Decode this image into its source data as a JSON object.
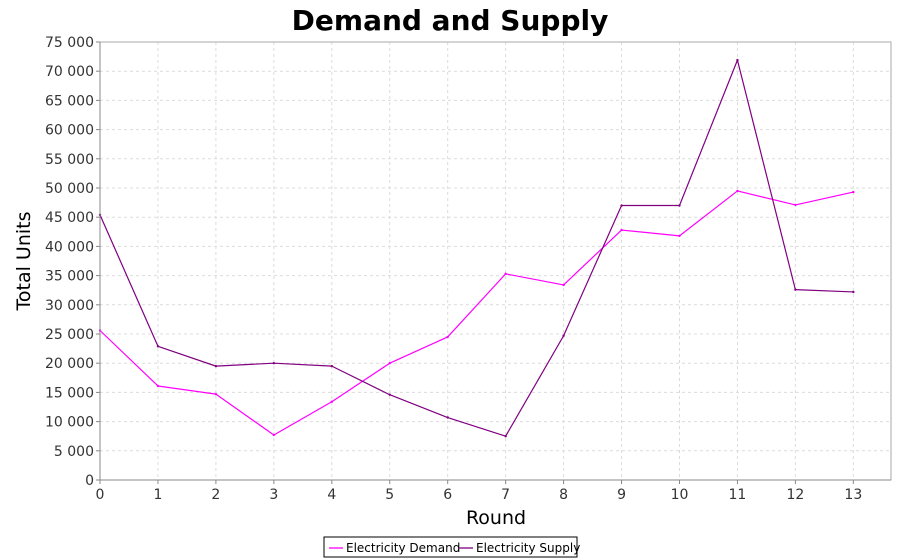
{
  "chart_data": {
    "type": "line",
    "title": "Demand and Supply",
    "xlabel": "Round",
    "ylabel": "Total Units",
    "x": [
      0,
      1,
      2,
      3,
      4,
      5,
      6,
      7,
      8,
      9,
      10,
      11,
      12,
      13
    ],
    "xlim": [
      0,
      13.65
    ],
    "ylim": [
      0,
      75000
    ],
    "y_ticks": [
      0,
      5000,
      10000,
      15000,
      20000,
      25000,
      30000,
      35000,
      40000,
      45000,
      50000,
      55000,
      60000,
      65000,
      70000,
      75000
    ],
    "y_tick_labels": [
      "0",
      "5 000",
      "10 000",
      "15 000",
      "20 000",
      "25 000",
      "30 000",
      "35 000",
      "40 000",
      "45 000",
      "50 000",
      "55 000",
      "60 000",
      "65 000",
      "70 000",
      "75 000"
    ],
    "x_tick_labels": [
      "0",
      "1",
      "2",
      "3",
      "4",
      "5",
      "6",
      "7",
      "8",
      "9",
      "10",
      "11",
      "12",
      "13"
    ],
    "grid": true,
    "legend_position": "bottom-center",
    "series": [
      {
        "name": "Electricity Demand",
        "color": "#ff00ff",
        "values": [
          25600,
          16100,
          14700,
          7700,
          13400,
          20000,
          24500,
          35300,
          33400,
          42800,
          41800,
          49500,
          47100,
          49300
        ]
      },
      {
        "name": "Electricity Supply",
        "color": "#800080",
        "values": [
          45400,
          22900,
          19500,
          20000,
          19500,
          14600,
          10700,
          7500,
          24700,
          47000,
          47000,
          71900,
          32600,
          32200
        ]
      }
    ]
  }
}
